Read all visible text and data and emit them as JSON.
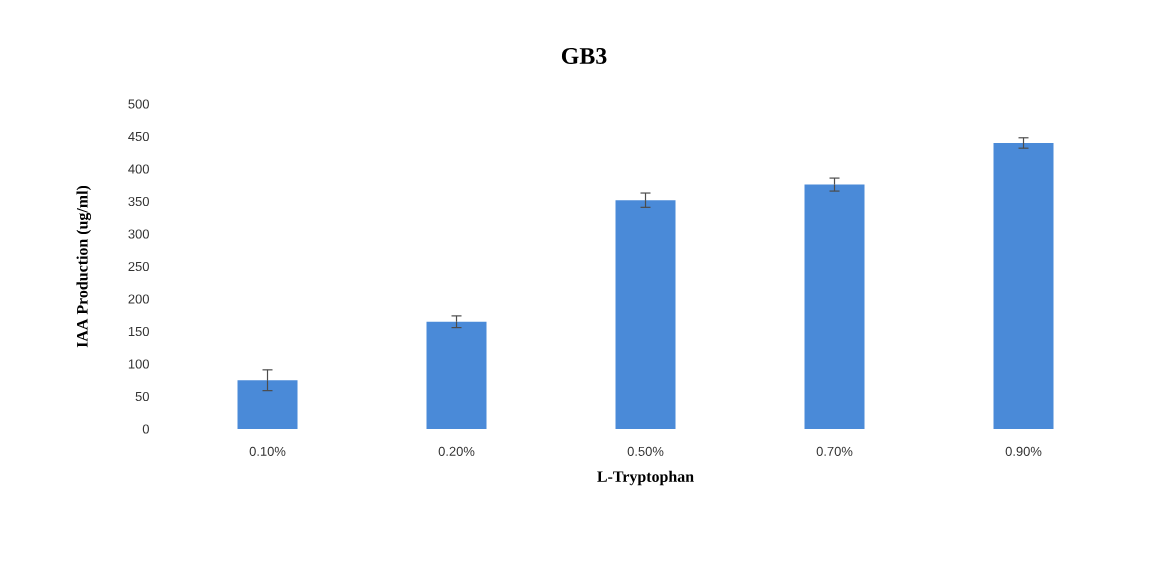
{
  "chart_data": {
    "type": "bar",
    "title": "GB3",
    "xlabel": "L-Tryptophan",
    "ylabel": "IAA Production (ug/ml)",
    "categories": [
      "0.10%",
      "0.20%",
      "0.50%",
      "0.70%",
      "0.90%"
    ],
    "values": [
      75,
      165,
      352,
      376,
      440
    ],
    "errors": [
      16,
      9,
      11,
      10,
      8
    ],
    "color": "#4a8ad8",
    "ylim": [
      0,
      500
    ],
    "yticks": [
      0,
      50,
      100,
      150,
      200,
      250,
      300,
      350,
      400,
      450,
      500
    ],
    "grid": false
  }
}
